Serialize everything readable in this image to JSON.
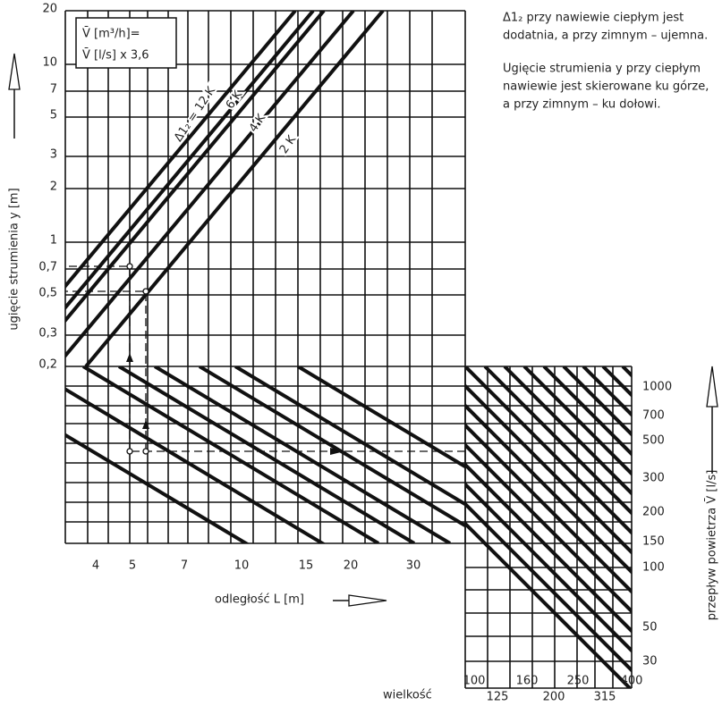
{
  "axes": {
    "y_label": "ugięcie strumienia y [m]",
    "x_label": "odległość L [m]",
    "flow_label": "przepływ powietrza V̄ [l/s]",
    "size_label": "wielkość"
  },
  "y_ticks": [
    "20",
    "10",
    "7",
    "5",
    "3",
    "2",
    "1",
    "0,7",
    "0,5",
    "0,3",
    "0,2"
  ],
  "x_ticks": [
    "4",
    "5",
    "7",
    "10",
    "15",
    "20",
    "30"
  ],
  "flow_ticks": [
    "1000",
    "700",
    "500",
    "300",
    "200",
    "150",
    "100",
    "50",
    "30"
  ],
  "size_ticks": [
    "100",
    "125",
    "160",
    "200",
    "250",
    "315",
    "400"
  ],
  "curves": [
    "Δ1₂ = 12 K",
    "6 K",
    "4 K",
    "2 K"
  ],
  "formula": [
    "V̄ [m³/h]=",
    "V̄ [l/s] x 3,6"
  ],
  "notes": [
    "Δ1₂ przy nawiewie ciepłym jest",
    "dodatnia, a przy zimnym – ujemna.",
    "Ugięcie strumienia y przy ciepłym",
    "nawiewie jest skierowane ku górze,",
    "a przy zimnym – ku dołowi."
  ]
}
